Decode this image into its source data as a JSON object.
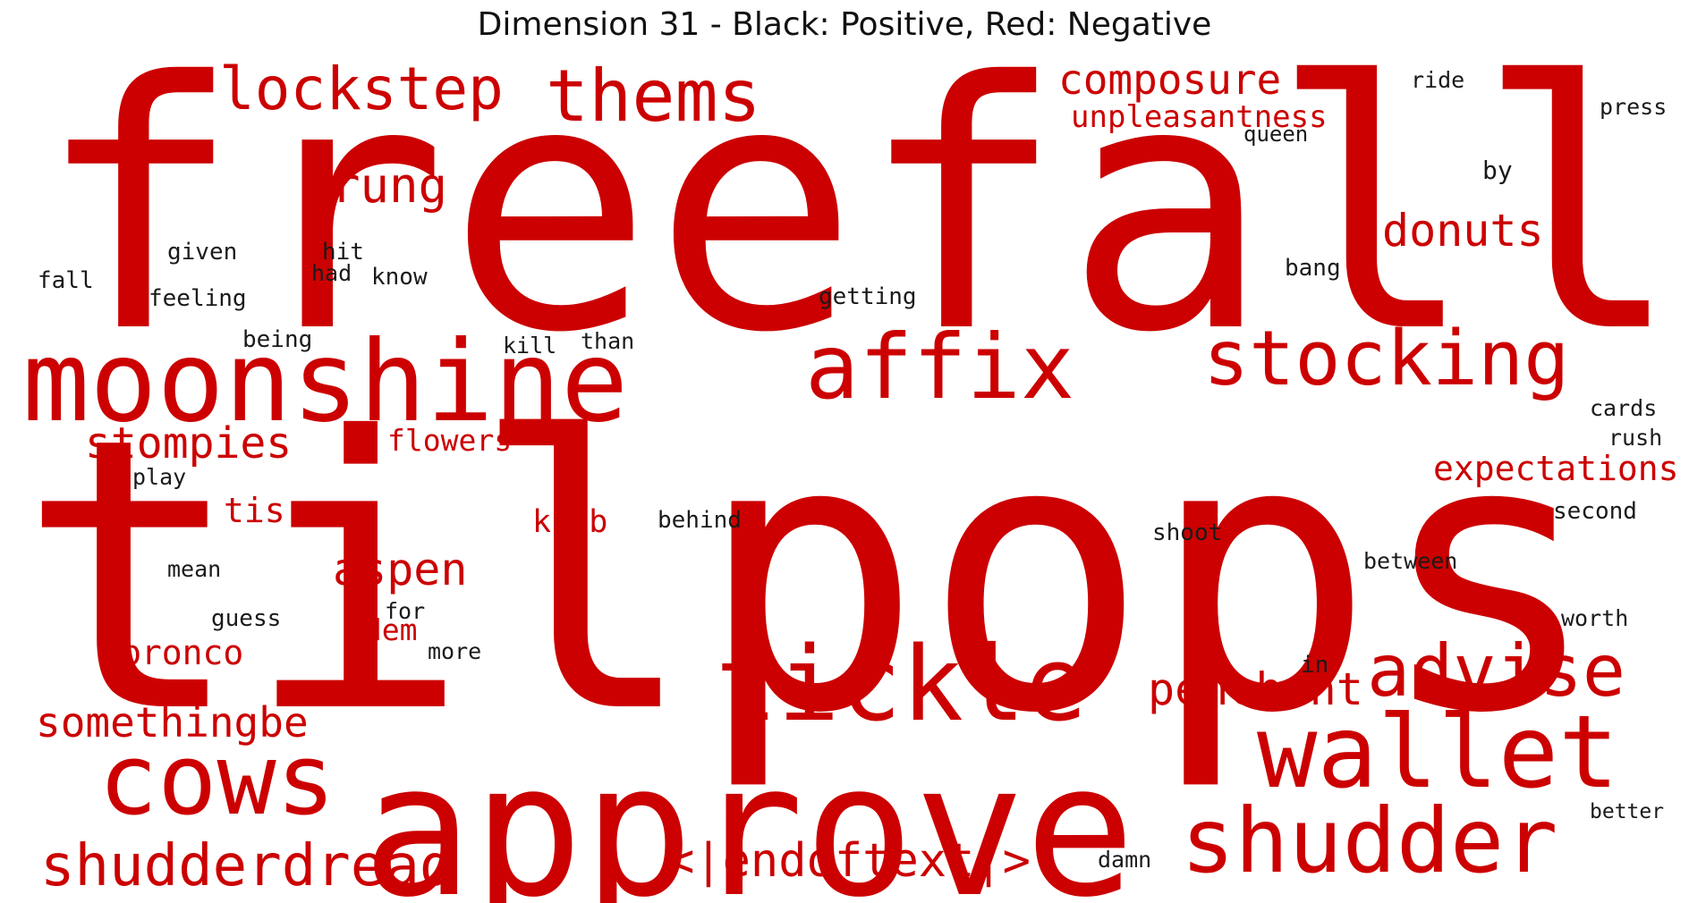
{
  "title": "Dimension 31 - Black: Positive, Red: Negative",
  "colors": {
    "positive": "#1a1a1a",
    "negative": "#cc0000",
    "background": "#ffffff"
  },
  "words": [
    {
      "text": "freefall",
      "sentiment": "negative"
    },
    {
      "text": "tilpops",
      "sentiment": "negative"
    },
    {
      "text": "approve",
      "sentiment": "negative"
    },
    {
      "text": "moonshine",
      "sentiment": "negative"
    },
    {
      "text": "affix",
      "sentiment": "negative"
    },
    {
      "text": "stocking",
      "sentiment": "negative"
    },
    {
      "text": "tickle",
      "sentiment": "negative"
    },
    {
      "text": "wallet",
      "sentiment": "negative"
    },
    {
      "text": "shudder",
      "sentiment": "negative"
    },
    {
      "text": "cows",
      "sentiment": "negative"
    },
    {
      "text": "thems",
      "sentiment": "negative"
    },
    {
      "text": "lockstep",
      "sentiment": "negative"
    },
    {
      "text": "composure",
      "sentiment": "negative"
    },
    {
      "text": "unpleasantness",
      "sentiment": "negative"
    },
    {
      "text": "rung",
      "sentiment": "negative"
    },
    {
      "text": "donuts",
      "sentiment": "negative"
    },
    {
      "text": "stompies",
      "sentiment": "negative"
    },
    {
      "text": "flowers",
      "sentiment": "negative"
    },
    {
      "text": "expectations",
      "sentiment": "negative"
    },
    {
      "text": "tis",
      "sentiment": "negative"
    },
    {
      "text": "knob",
      "sentiment": "negative"
    },
    {
      "text": "aspen",
      "sentiment": "negative"
    },
    {
      "text": "idem",
      "sentiment": "negative"
    },
    {
      "text": "bronco",
      "sentiment": "negative"
    },
    {
      "text": "advise",
      "sentiment": "negative"
    },
    {
      "text": "penchant",
      "sentiment": "negative"
    },
    {
      "text": "somethingbe",
      "sentiment": "negative"
    },
    {
      "text": "shudderdread",
      "sentiment": "negative"
    },
    {
      "text": "<|endoftext|>",
      "sentiment": "negative"
    },
    {
      "text": "ride",
      "sentiment": "positive"
    },
    {
      "text": "press",
      "sentiment": "positive"
    },
    {
      "text": "queen",
      "sentiment": "positive"
    },
    {
      "text": "by",
      "sentiment": "positive"
    },
    {
      "text": "bang",
      "sentiment": "positive"
    },
    {
      "text": "getting",
      "sentiment": "positive"
    },
    {
      "text": "given",
      "sentiment": "positive"
    },
    {
      "text": "hit",
      "sentiment": "positive"
    },
    {
      "text": "had",
      "sentiment": "positive"
    },
    {
      "text": "know",
      "sentiment": "positive"
    },
    {
      "text": "fall",
      "sentiment": "positive"
    },
    {
      "text": "feeling",
      "sentiment": "positive"
    },
    {
      "text": "being",
      "sentiment": "positive"
    },
    {
      "text": "kill",
      "sentiment": "positive"
    },
    {
      "text": "than",
      "sentiment": "positive"
    },
    {
      "text": "play",
      "sentiment": "positive"
    },
    {
      "text": "cards",
      "sentiment": "positive"
    },
    {
      "text": "rush",
      "sentiment": "positive"
    },
    {
      "text": "second",
      "sentiment": "positive"
    },
    {
      "text": "behind",
      "sentiment": "positive"
    },
    {
      "text": "shoot",
      "sentiment": "positive"
    },
    {
      "text": "between",
      "sentiment": "positive"
    },
    {
      "text": "mean",
      "sentiment": "positive"
    },
    {
      "text": "for",
      "sentiment": "positive"
    },
    {
      "text": "guess",
      "sentiment": "positive"
    },
    {
      "text": "more",
      "sentiment": "positive"
    },
    {
      "text": "worth",
      "sentiment": "positive"
    },
    {
      "text": "in",
      "sentiment": "positive"
    },
    {
      "text": "better",
      "sentiment": "positive"
    },
    {
      "text": "damn",
      "sentiment": "positive"
    }
  ]
}
